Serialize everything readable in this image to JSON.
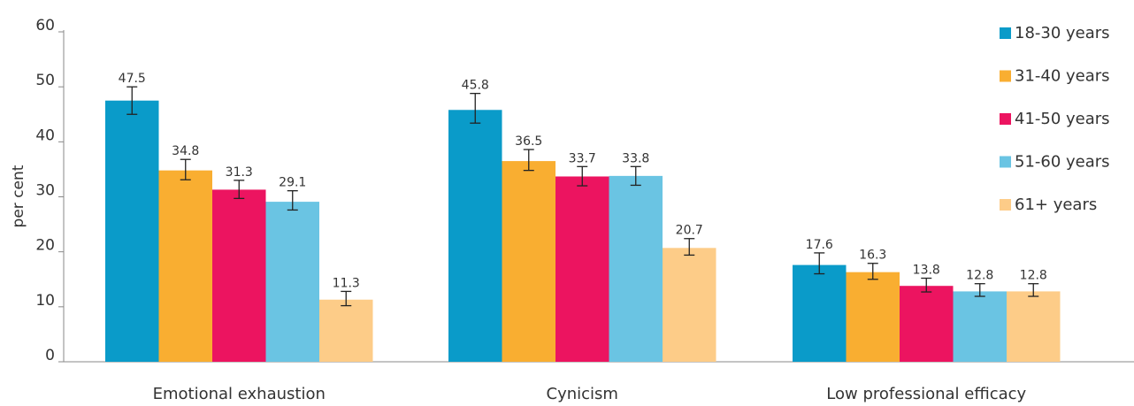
{
  "chart_data": {
    "type": "bar",
    "title": "",
    "xlabel": "",
    "ylabel": "per cent",
    "ylim": [
      0,
      60
    ],
    "yticks": [
      0,
      10,
      20,
      30,
      40,
      50,
      60
    ],
    "grid": false,
    "legend_position": "right",
    "categories": [
      "Emotional exhaustion",
      "Cynicism",
      "Low professional efficacy"
    ],
    "series": [
      {
        "name": "18-30 years",
        "color": "#0a9bc9",
        "values": [
          47.5,
          45.8,
          17.6
        ],
        "value_labels": [
          "47.5",
          "45.8",
          "17.6"
        ],
        "error_low": [
          45.0,
          43.4,
          16.0
        ],
        "error_high": [
          50.0,
          48.8,
          19.8
        ]
      },
      {
        "name": "31-40 years",
        "color": "#f9ae31",
        "values": [
          34.8,
          36.5,
          16.3
        ],
        "value_labels": [
          "34.8",
          "36.5",
          "16.3"
        ],
        "error_low": [
          33.1,
          34.8,
          15.0
        ],
        "error_high": [
          36.8,
          38.6,
          17.9
        ]
      },
      {
        "name": "41-50 years",
        "color": "#ec1460",
        "values": [
          31.3,
          33.7,
          13.8
        ],
        "value_labels": [
          "31.3",
          "33.7",
          "13.8"
        ],
        "error_low": [
          29.7,
          32.0,
          12.7
        ],
        "error_high": [
          33.0,
          35.5,
          15.2
        ]
      },
      {
        "name": "51-60 years",
        "color": "#6ac4e3",
        "values": [
          29.1,
          33.8,
          12.8
        ],
        "value_labels": [
          "29.1",
          "33.8",
          "12.8"
        ],
        "error_low": [
          27.6,
          32.1,
          11.9
        ],
        "error_high": [
          31.1,
          35.5,
          14.2
        ]
      },
      {
        "name": "61+ years",
        "color": "#fdcc88",
        "values": [
          11.3,
          20.7,
          12.8
        ],
        "value_labels": [
          "11.3",
          "20.7",
          "12.8"
        ],
        "error_low": [
          10.2,
          19.4,
          11.9
        ],
        "error_high": [
          12.8,
          22.4,
          14.2
        ]
      }
    ]
  }
}
